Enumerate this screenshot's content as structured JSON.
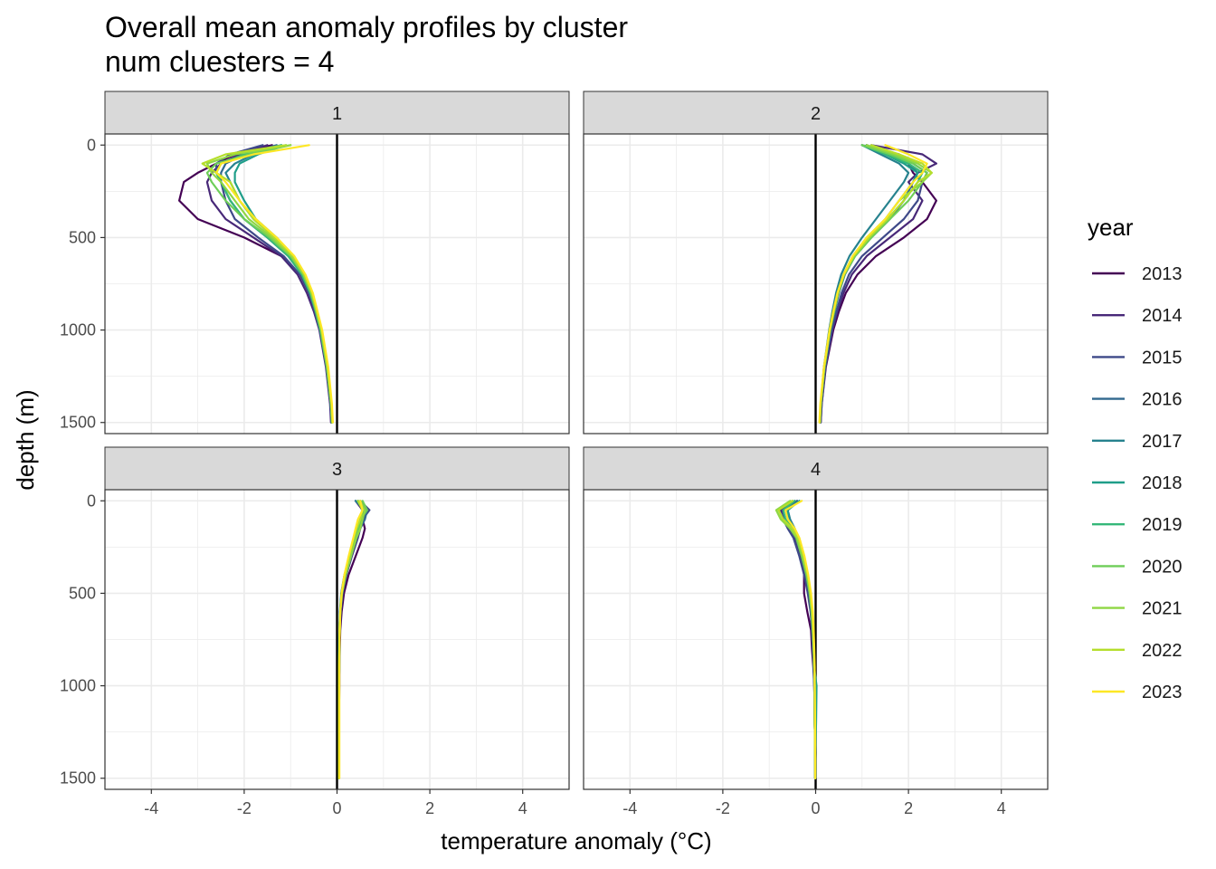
{
  "chart_data": {
    "type": "line",
    "title": [
      "Overall mean anomaly profiles by cluster",
      "num cluesters = 4"
    ],
    "xlabel": "temperature anomaly (°C)",
    "ylabel": "depth (m)",
    "xlim": [
      -5,
      5
    ],
    "ylim": [
      1560,
      -60
    ],
    "y_reversed": true,
    "x_ticks": [
      -4,
      -2,
      0,
      2,
      4
    ],
    "x_tick_labels": [
      "-4",
      "-2",
      "0",
      "2",
      "4"
    ],
    "y_ticks": [
      0,
      500,
      1000,
      1500
    ],
    "y_tick_labels": [
      "0",
      "500",
      "1000",
      "1500"
    ],
    "grid": true,
    "reference_line_x": 0,
    "facet_layout": [
      2,
      2
    ],
    "legend": {
      "title": "year",
      "placement": "right"
    },
    "years": [
      "2013",
      "2014",
      "2015",
      "2016",
      "2017",
      "2018",
      "2019",
      "2020",
      "2021",
      "2022",
      "2023"
    ],
    "colors": [
      "#440154",
      "#482878",
      "#3e4989",
      "#31688e",
      "#26828e",
      "#1f9e89",
      "#35b779",
      "#6ece58",
      "#8fd744",
      "#b5de2b",
      "#fde725"
    ],
    "depth": [
      0,
      50,
      100,
      150,
      200,
      300,
      400,
      500,
      600,
      700,
      800,
      900,
      1000,
      1200,
      1400,
      1500
    ],
    "panels": [
      {
        "label": "1",
        "series": [
          {
            "name": "2013",
            "x": [
              -1.4,
              -2.2,
              -2.6,
              -3.0,
              -3.3,
              -3.4,
              -3.0,
              -2.0,
              -1.2,
              -0.8,
              -0.6,
              -0.45,
              -0.35,
              -0.22,
              -0.14,
              -0.12
            ]
          },
          {
            "name": "2014",
            "x": [
              -1.5,
              -2.1,
              -2.5,
              -2.7,
              -2.8,
              -2.7,
              -2.4,
              -1.8,
              -1.2,
              -0.85,
              -0.65,
              -0.5,
              -0.38,
              -0.24,
              -0.15,
              -0.13
            ]
          },
          {
            "name": "2015",
            "x": [
              -1.6,
              -2.3,
              -2.6,
              -2.6,
              -2.5,
              -2.4,
              -2.2,
              -1.7,
              -1.15,
              -0.8,
              -0.6,
              -0.48,
              -0.37,
              -0.23,
              -0.14,
              -0.12
            ]
          },
          {
            "name": "2016",
            "x": [
              -1.3,
              -2.0,
              -2.4,
              -2.5,
              -2.5,
              -2.3,
              -2.0,
              -1.5,
              -1.05,
              -0.75,
              -0.58,
              -0.46,
              -0.36,
              -0.22,
              -0.13,
              -0.11
            ]
          },
          {
            "name": "2017",
            "x": [
              -1.2,
              -1.8,
              -2.2,
              -2.4,
              -2.3,
              -2.1,
              -1.8,
              -1.35,
              -1.0,
              -0.72,
              -0.56,
              -0.45,
              -0.35,
              -0.22,
              -0.13,
              -0.11
            ]
          },
          {
            "name": "2018",
            "x": [
              -1.1,
              -1.7,
              -2.1,
              -2.2,
              -2.2,
              -2.0,
              -1.75,
              -1.3,
              -0.95,
              -0.7,
              -0.55,
              -0.44,
              -0.34,
              -0.21,
              -0.13,
              -0.11
            ]
          },
          {
            "name": "2019",
            "x": [
              -1.2,
              -2.0,
              -2.5,
              -2.6,
              -2.5,
              -2.3,
              -2.0,
              -1.5,
              -1.05,
              -0.76,
              -0.58,
              -0.46,
              -0.36,
              -0.22,
              -0.13,
              -0.11
            ]
          },
          {
            "name": "2020",
            "x": [
              -1.0,
              -1.9,
              -2.6,
              -2.8,
              -2.7,
              -2.4,
              -2.0,
              -1.45,
              -1.0,
              -0.73,
              -0.56,
              -0.45,
              -0.35,
              -0.22,
              -0.13,
              -0.11
            ]
          },
          {
            "name": "2021",
            "x": [
              -1.0,
              -2.2,
              -2.8,
              -2.7,
              -2.5,
              -2.2,
              -1.9,
              -1.4,
              -0.98,
              -0.72,
              -0.55,
              -0.44,
              -0.34,
              -0.21,
              -0.12,
              -0.1
            ]
          },
          {
            "name": "2022",
            "x": [
              -1.1,
              -2.4,
              -2.9,
              -2.6,
              -2.3,
              -2.1,
              -1.8,
              -1.35,
              -0.95,
              -0.7,
              -0.54,
              -0.43,
              -0.33,
              -0.2,
              -0.12,
              -0.1
            ]
          },
          {
            "name": "2023",
            "x": [
              -0.6,
              -1.8,
              -2.5,
              -2.6,
              -2.4,
              -2.1,
              -1.75,
              -1.3,
              -0.92,
              -0.68,
              -0.52,
              -0.42,
              -0.32,
              -0.19,
              -0.11,
              -0.09
            ]
          }
        ]
      },
      {
        "label": "2",
        "series": [
          {
            "name": "2013",
            "x": [
              1.1,
              1.6,
              2.0,
              2.1,
              2.3,
              2.6,
              2.4,
              1.9,
              1.3,
              0.9,
              0.65,
              0.5,
              0.38,
              0.22,
              0.13,
              0.11
            ]
          },
          {
            "name": "2014",
            "x": [
              1.2,
              2.3,
              2.6,
              2.2,
              2.0,
              2.3,
              2.1,
              1.6,
              1.1,
              0.78,
              0.6,
              0.47,
              0.36,
              0.21,
              0.13,
              0.11
            ]
          },
          {
            "name": "2015",
            "x": [
              1.0,
              1.8,
              2.1,
              2.4,
              2.3,
              2.2,
              1.9,
              1.45,
              1.0,
              0.72,
              0.56,
              0.45,
              0.35,
              0.21,
              0.12,
              0.1
            ]
          },
          {
            "name": "2016",
            "x": [
              1.1,
              1.5,
              2.0,
              2.2,
              2.1,
              1.9,
              1.6,
              1.2,
              0.85,
              0.63,
              0.5,
              0.41,
              0.32,
              0.2,
              0.12,
              0.1
            ]
          },
          {
            "name": "2017",
            "x": [
              1.0,
              1.4,
              1.8,
              2.0,
              1.9,
              1.6,
              1.3,
              1.0,
              0.73,
              0.55,
              0.44,
              0.36,
              0.29,
              0.18,
              0.11,
              0.09
            ]
          },
          {
            "name": "2018",
            "x": [
              1.1,
              1.5,
              1.9,
              2.2,
              2.1,
              1.8,
              1.5,
              1.15,
              0.82,
              0.6,
              0.48,
              0.39,
              0.31,
              0.19,
              0.11,
              0.09
            ]
          },
          {
            "name": "2019",
            "x": [
              1.0,
              1.5,
              2.0,
              2.3,
              2.2,
              1.9,
              1.55,
              1.15,
              0.82,
              0.6,
              0.48,
              0.39,
              0.31,
              0.19,
              0.11,
              0.09
            ]
          },
          {
            "name": "2020",
            "x": [
              1.0,
              1.6,
              2.1,
              2.4,
              2.3,
              2.0,
              1.6,
              1.2,
              0.85,
              0.62,
              0.49,
              0.4,
              0.31,
              0.19,
              0.11,
              0.09
            ]
          },
          {
            "name": "2021",
            "x": [
              1.1,
              1.7,
              2.2,
              2.5,
              2.3,
              1.8,
              1.5,
              1.1,
              0.8,
              0.6,
              0.47,
              0.38,
              0.3,
              0.18,
              0.11,
              0.09
            ]
          },
          {
            "name": "2022",
            "x": [
              1.2,
              1.8,
              2.3,
              2.5,
              2.2,
              1.9,
              1.55,
              1.15,
              0.82,
              0.61,
              0.48,
              0.39,
              0.31,
              0.19,
              0.11,
              0.09
            ]
          },
          {
            "name": "2023",
            "x": [
              1.5,
              2.0,
              2.4,
              2.3,
              2.1,
              1.8,
              1.5,
              1.1,
              0.8,
              0.6,
              0.47,
              0.38,
              0.3,
              0.18,
              0.1,
              0.08
            ]
          }
        ]
      },
      {
        "label": "3",
        "series": [
          {
            "name": "2013",
            "x": [
              0.45,
              0.6,
              0.55,
              0.6,
              0.55,
              0.4,
              0.25,
              0.15,
              0.1,
              0.07,
              0.06,
              0.05,
              0.05,
              0.04,
              0.04,
              0.04
            ]
          },
          {
            "name": "2014",
            "x": [
              0.4,
              0.55,
              0.5,
              0.45,
              0.4,
              0.3,
              0.2,
              0.12,
              0.08,
              0.06,
              0.05,
              0.05,
              0.04,
              0.04,
              0.04,
              0.04
            ]
          },
          {
            "name": "2015",
            "x": [
              0.5,
              0.7,
              0.55,
              0.5,
              0.45,
              0.32,
              0.2,
              0.12,
              0.08,
              0.06,
              0.05,
              0.05,
              0.04,
              0.04,
              0.04,
              0.04
            ]
          },
          {
            "name": "2016",
            "x": [
              0.45,
              0.65,
              0.6,
              0.5,
              0.42,
              0.3,
              0.18,
              0.1,
              0.07,
              0.05,
              0.05,
              0.04,
              0.04,
              0.04,
              0.04,
              0.04
            ]
          },
          {
            "name": "2017",
            "x": [
              0.4,
              0.6,
              0.55,
              0.45,
              0.38,
              0.27,
              0.16,
              0.09,
              0.06,
              0.05,
              0.04,
              0.04,
              0.04,
              0.04,
              0.04,
              0.04
            ]
          },
          {
            "name": "2018",
            "x": [
              0.45,
              0.6,
              0.5,
              0.45,
              0.38,
              0.27,
              0.17,
              0.1,
              0.07,
              0.05,
              0.04,
              0.04,
              0.04,
              0.04,
              0.04,
              0.04
            ]
          },
          {
            "name": "2019",
            "x": [
              0.5,
              0.55,
              0.5,
              0.48,
              0.4,
              0.28,
              0.17,
              0.1,
              0.07,
              0.05,
              0.05,
              0.04,
              0.04,
              0.04,
              0.04,
              0.04
            ]
          },
          {
            "name": "2020",
            "x": [
              0.55,
              0.65,
              0.5,
              0.45,
              0.4,
              0.3,
              0.18,
              0.1,
              0.07,
              0.05,
              0.05,
              0.04,
              0.04,
              0.04,
              0.04,
              0.04
            ]
          },
          {
            "name": "2021",
            "x": [
              0.5,
              0.6,
              0.55,
              0.5,
              0.42,
              0.3,
              0.19,
              0.11,
              0.07,
              0.06,
              0.05,
              0.05,
              0.04,
              0.04,
              0.04,
              0.04
            ]
          },
          {
            "name": "2022",
            "x": [
              0.45,
              0.55,
              0.5,
              0.42,
              0.36,
              0.26,
              0.16,
              0.1,
              0.07,
              0.05,
              0.05,
              0.04,
              0.04,
              0.04,
              0.04,
              0.04
            ]
          },
          {
            "name": "2023",
            "x": [
              0.5,
              0.55,
              0.45,
              0.4,
              0.35,
              0.25,
              0.16,
              0.1,
              0.07,
              0.06,
              0.05,
              0.05,
              0.05,
              0.05,
              0.05,
              0.05
            ]
          }
        ]
      },
      {
        "label": "4",
        "series": [
          {
            "name": "2013",
            "x": [
              -0.4,
              -0.7,
              -0.7,
              -0.55,
              -0.45,
              -0.3,
              -0.25,
              -0.25,
              -0.18,
              -0.1,
              -0.08,
              -0.05,
              -0.03,
              -0.02,
              -0.01,
              -0.01
            ]
          },
          {
            "name": "2014",
            "x": [
              -0.5,
              -0.75,
              -0.65,
              -0.55,
              -0.45,
              -0.32,
              -0.22,
              -0.15,
              -0.1,
              -0.07,
              -0.05,
              -0.04,
              -0.03,
              -0.02,
              -0.01,
              -0.01
            ]
          },
          {
            "name": "2015",
            "x": [
              -0.45,
              -0.7,
              -0.7,
              -0.6,
              -0.48,
              -0.35,
              -0.25,
              -0.17,
              -0.11,
              -0.08,
              -0.06,
              -0.04,
              -0.03,
              -0.02,
              -0.01,
              -0.01
            ]
          },
          {
            "name": "2016",
            "x": [
              -0.4,
              -0.65,
              -0.6,
              -0.5,
              -0.42,
              -0.3,
              -0.2,
              -0.13,
              -0.09,
              -0.07,
              -0.05,
              -0.04,
              -0.03,
              -0.02,
              -0.01,
              -0.01
            ]
          },
          {
            "name": "2017",
            "x": [
              -0.35,
              -0.6,
              -0.55,
              -0.45,
              -0.38,
              -0.28,
              -0.19,
              -0.13,
              -0.09,
              -0.06,
              -0.05,
              -0.03,
              -0.02,
              -0.02,
              -0.01,
              -0.01
            ]
          },
          {
            "name": "2018",
            "x": [
              -0.35,
              -0.6,
              -0.6,
              -0.5,
              -0.4,
              -0.28,
              -0.19,
              -0.12,
              -0.08,
              -0.06,
              -0.04,
              -0.03,
              0.02,
              0.01,
              -0.01,
              -0.01
            ]
          },
          {
            "name": "2019",
            "x": [
              -0.45,
              -0.7,
              -0.65,
              -0.5,
              -0.4,
              -0.28,
              -0.19,
              -0.12,
              -0.08,
              -0.06,
              -0.04,
              -0.03,
              -0.02,
              -0.02,
              -0.01,
              -0.01
            ]
          },
          {
            "name": "2020",
            "x": [
              -0.5,
              -0.8,
              -0.7,
              -0.55,
              -0.42,
              -0.3,
              -0.2,
              -0.13,
              -0.09,
              -0.06,
              -0.04,
              -0.03,
              -0.02,
              -0.02,
              -0.01,
              -0.01
            ]
          },
          {
            "name": "2021",
            "x": [
              -0.55,
              -0.85,
              -0.75,
              -0.55,
              -0.4,
              -0.28,
              -0.18,
              -0.12,
              -0.08,
              -0.06,
              -0.04,
              -0.03,
              -0.02,
              -0.02,
              -0.01,
              -0.01
            ]
          },
          {
            "name": "2022",
            "x": [
              -0.5,
              -0.8,
              -0.7,
              -0.5,
              -0.38,
              -0.26,
              -0.17,
              -0.11,
              -0.07,
              -0.05,
              -0.04,
              -0.03,
              -0.02,
              -0.02,
              -0.01,
              -0.01
            ]
          },
          {
            "name": "2023",
            "x": [
              -0.3,
              -0.65,
              -0.6,
              -0.45,
              -0.35,
              -0.24,
              -0.16,
              -0.1,
              -0.06,
              -0.04,
              -0.03,
              -0.02,
              -0.02,
              -0.01,
              -0.01,
              -0.01
            ]
          }
        ]
      }
    ]
  }
}
